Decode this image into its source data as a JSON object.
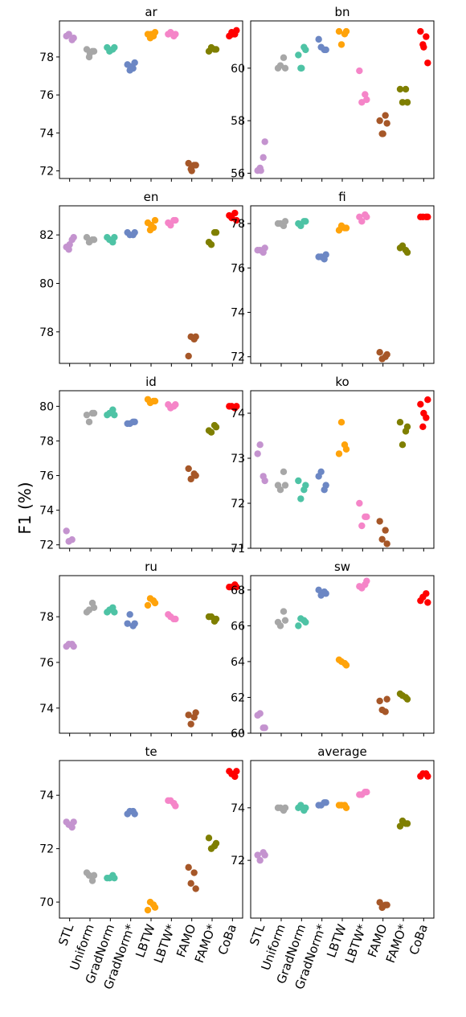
{
  "figure": {
    "ylabel": "F1 (%)"
  },
  "methods": [
    "STL",
    "Uniform",
    "GradNorm",
    "GradNorm*",
    "LBTW",
    "LBTW*",
    "FAMO",
    "FAMO*",
    "CoBa"
  ],
  "colors": [
    "#c493cf",
    "#a7a7a7",
    "#4ec3a5",
    "#6c87c4",
    "#ffa30a",
    "#f585c8",
    "#a65728",
    "#7f7f00",
    "#ff0000"
  ],
  "chart_data": [
    {
      "type": "scatter",
      "title": "ar",
      "ylim": [
        71.6,
        79.9
      ],
      "yticks": [
        72,
        74,
        76,
        78
      ],
      "series": [
        {
          "values": [
            79.1,
            78.9,
            79.2,
            79.0
          ]
        },
        {
          "values": [
            78.4,
            78.3,
            78.0,
            78.3,
            78.2
          ]
        },
        {
          "values": [
            78.5,
            78.4,
            78.3,
            78.5
          ]
        },
        {
          "values": [
            77.6,
            77.4,
            77.3,
            77.7,
            77.5
          ]
        },
        {
          "values": [
            79.2,
            79.1,
            79.0,
            79.3,
            79.2
          ]
        },
        {
          "values": [
            79.2,
            79.1,
            79.3,
            79.2
          ]
        },
        {
          "values": [
            72.4,
            72.3,
            72.1,
            72.3,
            72.0
          ]
        },
        {
          "values": [
            78.3,
            78.4,
            78.5,
            78.4
          ]
        },
        {
          "values": [
            79.1,
            79.2,
            79.3,
            79.4,
            79.2
          ]
        }
      ]
    },
    {
      "type": "scatter",
      "title": "bn",
      "ylim": [
        55.8,
        61.8
      ],
      "yticks": [
        56,
        58,
        60
      ],
      "series": [
        {
          "values": [
            56.1,
            56.6,
            56.2,
            57.2,
            56.1
          ]
        },
        {
          "values": [
            60.0,
            60.4,
            60.1,
            60.0
          ]
        },
        {
          "values": [
            60.5,
            60.8,
            60.0,
            60.7,
            60.0
          ]
        },
        {
          "values": [
            61.1,
            60.7,
            60.8,
            60.7
          ]
        },
        {
          "values": [
            61.4,
            61.3,
            60.9,
            61.4
          ]
        },
        {
          "values": [
            59.9,
            59.0,
            58.7,
            58.8
          ]
        },
        {
          "values": [
            58.0,
            58.2,
            57.5,
            57.9,
            57.5
          ]
        },
        {
          "values": [
            59.2,
            59.2,
            58.7,
            58.7
          ]
        },
        {
          "values": [
            61.4,
            61.2,
            60.9,
            60.2,
            60.8
          ]
        }
      ]
    },
    {
      "type": "scatter",
      "title": "en",
      "ylim": [
        76.7,
        83.2
      ],
      "yticks": [
        78,
        80,
        82
      ],
      "series": [
        {
          "values": [
            81.5,
            81.8,
            81.4,
            81.9,
            81.6
          ]
        },
        {
          "values": [
            81.9,
            81.8,
            81.7,
            81.8
          ]
        },
        {
          "values": [
            81.9,
            81.7,
            81.8,
            81.9
          ]
        },
        {
          "values": [
            82.1,
            82.0,
            82.0,
            82.1
          ]
        },
        {
          "values": [
            82.5,
            82.3,
            82.2,
            82.6,
            82.4
          ]
        },
        {
          "values": [
            82.5,
            82.6,
            82.4,
            82.6
          ]
        },
        {
          "values": [
            77.0,
            77.7,
            77.8,
            77.8
          ]
        },
        {
          "values": [
            81.7,
            82.1,
            81.6,
            82.1
          ]
        },
        {
          "values": [
            82.8,
            82.9,
            82.7,
            82.6
          ]
        }
      ]
    },
    {
      "type": "scatter",
      "title": "fi",
      "ylim": [
        71.7,
        78.8
      ],
      "yticks": [
        72,
        74,
        76,
        78
      ],
      "series": [
        {
          "values": [
            76.8,
            76.7,
            76.8,
            76.9
          ]
        },
        {
          "values": [
            78.0,
            77.9,
            78.0,
            78.1
          ]
        },
        {
          "values": [
            78.0,
            78.1,
            77.9,
            78.1
          ]
        },
        {
          "values": [
            76.5,
            76.4,
            76.5,
            76.6
          ]
        },
        {
          "values": [
            77.7,
            77.8,
            77.9,
            77.8
          ]
        },
        {
          "values": [
            78.3,
            78.4,
            78.1,
            78.3
          ]
        },
        {
          "values": [
            72.2,
            72.0,
            71.9,
            72.1
          ]
        },
        {
          "values": [
            76.9,
            76.8,
            77.0,
            76.7
          ]
        },
        {
          "values": [
            78.3,
            78.3,
            78.3,
            78.3
          ]
        }
      ]
    },
    {
      "type": "scatter",
      "title": "id",
      "ylim": [
        71.8,
        80.9
      ],
      "yticks": [
        72,
        74,
        76,
        78,
        80
      ],
      "series": [
        {
          "values": [
            72.8,
            72.3,
            72.2
          ]
        },
        {
          "values": [
            79.5,
            79.6,
            79.1,
            79.6
          ]
        },
        {
          "values": [
            79.5,
            79.8,
            79.6,
            79.5
          ]
        },
        {
          "values": [
            79.0,
            79.1,
            79.0,
            79.1
          ]
        },
        {
          "values": [
            80.4,
            80.3,
            80.2,
            80.3
          ]
        },
        {
          "values": [
            80.1,
            80.0,
            79.9,
            80.1
          ]
        },
        {
          "values": [
            76.4,
            76.1,
            75.8,
            76.0
          ]
        },
        {
          "values": [
            78.6,
            78.9,
            78.5,
            78.8
          ]
        },
        {
          "values": [
            80.0,
            79.9,
            80.0,
            80.0
          ]
        }
      ]
    },
    {
      "type": "scatter",
      "title": "ko",
      "ylim": [
        71.0,
        74.5
      ],
      "yticks": [
        71,
        72,
        73,
        74
      ],
      "series": [
        {
          "values": [
            73.1,
            72.6,
            73.3,
            72.5
          ]
        },
        {
          "values": [
            72.4,
            72.7,
            72.3,
            72.4
          ]
        },
        {
          "values": [
            72.5,
            72.3,
            72.1,
            72.4
          ]
        },
        {
          "values": [
            72.6,
            72.3,
            72.7,
            72.4
          ]
        },
        {
          "values": [
            73.1,
            73.3,
            73.8,
            73.2
          ]
        },
        {
          "values": [
            72.0,
            71.7,
            71.5,
            71.7
          ]
        },
        {
          "values": [
            71.6,
            71.4,
            71.2,
            71.1
          ]
        },
        {
          "values": [
            73.8,
            73.6,
            73.3,
            73.7
          ]
        },
        {
          "values": [
            74.2,
            73.9,
            73.7,
            74.3,
            74.0
          ]
        }
      ]
    },
    {
      "type": "scatter",
      "title": "ru",
      "ylim": [
        72.9,
        79.8
      ],
      "yticks": [
        74,
        76,
        78
      ],
      "series": [
        {
          "values": [
            76.7,
            76.8,
            76.8,
            76.7
          ]
        },
        {
          "values": [
            78.2,
            78.6,
            78.3,
            78.4
          ]
        },
        {
          "values": [
            78.2,
            78.4,
            78.3,
            78.2
          ]
        },
        {
          "values": [
            77.7,
            77.6,
            78.1,
            77.7
          ]
        },
        {
          "values": [
            78.5,
            78.7,
            78.8,
            78.6
          ]
        },
        {
          "values": [
            78.1,
            77.9,
            78.0,
            77.9
          ]
        },
        {
          "values": [
            73.7,
            73.6,
            73.3,
            73.8
          ]
        },
        {
          "values": [
            78.0,
            77.8,
            78.0,
            77.9
          ]
        },
        {
          "values": [
            79.3,
            79.4,
            79.3,
            79.3
          ]
        }
      ]
    },
    {
      "type": "scatter",
      "title": "sw",
      "ylim": [
        60.0,
        68.8
      ],
      "yticks": [
        60,
        62,
        64,
        66,
        68
      ],
      "series": [
        {
          "values": [
            61.0,
            60.3,
            61.1,
            60.3
          ]
        },
        {
          "values": [
            66.2,
            66.8,
            66.0,
            66.3
          ]
        },
        {
          "values": [
            66.0,
            66.3,
            66.4,
            66.2
          ]
        },
        {
          "values": [
            68.0,
            67.9,
            67.7,
            67.8
          ]
        },
        {
          "values": [
            64.1,
            63.9,
            64.0,
            63.8
          ]
        },
        {
          "values": [
            68.2,
            68.3,
            68.1,
            68.5
          ]
        },
        {
          "values": [
            61.8,
            61.2,
            61.3,
            61.9
          ]
        },
        {
          "values": [
            62.2,
            62.0,
            62.1,
            61.9
          ]
        },
        {
          "values": [
            67.4,
            67.8,
            67.6,
            67.3
          ]
        }
      ]
    },
    {
      "type": "scatter",
      "title": "te",
      "ylim": [
        69.4,
        75.3
      ],
      "yticks": [
        70,
        72,
        74
      ],
      "series": [
        {
          "values": [
            73.0,
            72.8,
            72.9,
            73.0
          ]
        },
        {
          "values": [
            71.1,
            70.8,
            71.0,
            71.0
          ]
        },
        {
          "values": [
            70.9,
            71.0,
            70.9,
            70.9
          ]
        },
        {
          "values": [
            73.3,
            73.4,
            73.4,
            73.3
          ]
        },
        {
          "values": [
            69.7,
            69.9,
            70.0,
            69.8
          ]
        },
        {
          "values": [
            73.8,
            73.7,
            73.8,
            73.6
          ]
        },
        {
          "values": [
            71.3,
            71.1,
            70.7,
            70.5
          ]
        },
        {
          "values": [
            72.4,
            72.1,
            72.0,
            72.2
          ]
        },
        {
          "values": [
            74.9,
            74.7,
            74.8,
            74.9
          ]
        }
      ]
    },
    {
      "type": "scatter",
      "title": "average",
      "ylim": [
        69.8,
        75.8
      ],
      "yticks": [
        72,
        74
      ],
      "series": [
        {
          "values": [
            72.2,
            72.3,
            72.0,
            72.2
          ]
        },
        {
          "values": [
            74.0,
            73.9,
            74.0,
            74.0
          ]
        },
        {
          "values": [
            74.0,
            73.9,
            74.1,
            74.0
          ]
        },
        {
          "values": [
            74.1,
            74.2,
            74.1,
            74.2
          ]
        },
        {
          "values": [
            74.1,
            74.1,
            74.1,
            74.0
          ]
        },
        {
          "values": [
            74.5,
            74.6,
            74.5,
            74.6
          ]
        },
        {
          "values": [
            70.4,
            70.3,
            70.2,
            70.3
          ]
        },
        {
          "values": [
            73.3,
            73.4,
            73.5,
            73.4
          ]
        },
        {
          "values": [
            75.2,
            75.3,
            75.3,
            75.2
          ]
        }
      ]
    }
  ]
}
